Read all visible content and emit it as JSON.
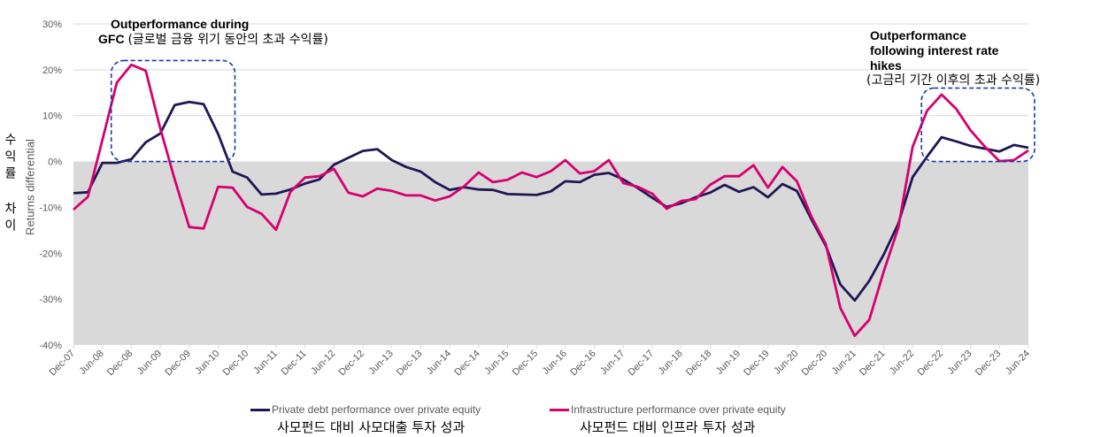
{
  "chart_data": {
    "type": "line",
    "title": "",
    "ylabel": "Returns differential",
    "ylabel_kr": "수익률 차이",
    "ylim": [
      -40,
      30
    ],
    "yticks": [
      "30%",
      "20%",
      "10%",
      "0%",
      "-10%",
      "-20%",
      "-30%",
      "-40%"
    ],
    "ytick_values": [
      30,
      20,
      10,
      0,
      -10,
      -20,
      -30,
      -40
    ],
    "grid": true,
    "legend_position": "bottom",
    "xtick_labels": [
      "Dec-07",
      "Jun-08",
      "Dec-08",
      "Jun-09",
      "Dec-09",
      "Jun-10",
      "Dec-10",
      "Jun-11",
      "Dec-11",
      "Jun-12",
      "Dec-12",
      "Jun-13",
      "Dec-13",
      "Jun-14",
      "Dec-14",
      "Jun-15",
      "Dec-15",
      "Jun-16",
      "Dec-16",
      "Jun-17",
      "Dec-17",
      "Jun-18",
      "Dec-18",
      "Jun-19",
      "Dec-19",
      "Jun-20",
      "Dec-20",
      "Jun-21",
      "Dec-21",
      "Jun-22",
      "Dec-22",
      "Jun-23",
      "Dec-23",
      "Jun-24"
    ],
    "series": [
      {
        "name": "Private debt performance over private equity",
        "name_kr": "사모펀드 대비 사모대출 투자 성과",
        "color": "#1f1754",
        "values": [
          -6.9,
          -6.7,
          -0.3,
          -0.3,
          0.5,
          4.2,
          6.1,
          12.3,
          13.0,
          12.5,
          6.0,
          -2.2,
          -3.5,
          -7.2,
          -7.0,
          -6.1,
          -4.8,
          -3.9,
          -0.7,
          0.8,
          2.3,
          2.7,
          0.3,
          -1.2,
          -2.2,
          -4.5,
          -6.2,
          -5.6,
          -6.1,
          -6.2,
          -7.1,
          -7.2,
          -7.3,
          -6.5,
          -4.3,
          -4.5,
          -2.9,
          -2.5,
          -3.9,
          -5.8,
          -7.9,
          -9.9,
          -9.1,
          -7.8,
          -6.8,
          -5.1,
          -6.6,
          -5.6,
          -7.8,
          -4.9,
          -6.4,
          -12.6,
          -18.4,
          -26.8,
          -30.3,
          -26.0,
          -20.3,
          -13.6,
          -3.4,
          1.1,
          5.3,
          4.4,
          3.4,
          2.8,
          2.2,
          3.6,
          3.0
        ]
      },
      {
        "name": "Infrastructure performance over private equity",
        "name_kr": "사모펀드 대비 인프라 투자 성과",
        "color": "#d6006f",
        "values": [
          -10.5,
          -7.7,
          4.7,
          17.2,
          21.1,
          19.8,
          7.2,
          -3.9,
          -14.3,
          -14.6,
          -5.5,
          -5.7,
          -9.9,
          -11.4,
          -14.9,
          -6.6,
          -3.5,
          -3.2,
          -1.6,
          -6.8,
          -7.6,
          -5.9,
          -6.4,
          -7.4,
          -7.4,
          -8.5,
          -7.6,
          -5.4,
          -2.4,
          -4.5,
          -4.0,
          -2.4,
          -3.4,
          -2.1,
          0.3,
          -2.6,
          -2.1,
          0.3,
          -4.7,
          -5.5,
          -7.0,
          -10.3,
          -8.6,
          -8.2,
          -5.1,
          -3.2,
          -3.2,
          -0.8,
          -5.7,
          -1.2,
          -4.3,
          -12.0,
          -18.0,
          -31.9,
          -38.0,
          -34.5,
          -24.0,
          -14.5,
          3.2,
          11.1,
          14.6,
          11.5,
          6.8,
          3.2,
          0.1,
          0.3,
          2.4
        ]
      }
    ],
    "shaded_region": {
      "from": -40,
      "to": 0,
      "color": "#d9d9d9"
    },
    "annotations": [
      {
        "title_line1": "Outperformance during",
        "title_line2": "GFC",
        "kr": "(글로벌 금융 위기 동안의 초과 수익률)",
        "box_x_range": [
          "Jun-08",
          "Jun-10"
        ],
        "box_y_range": [
          0,
          22
        ]
      },
      {
        "title_line1": "Outperformance",
        "title_line2": "following interest rate",
        "title_line3": "hikes",
        "kr": "(고금리 기간 이후의 초과 수익률)",
        "box_x_range": [
          "Jun-22",
          "Jun-24"
        ],
        "box_y_range": [
          0,
          16
        ]
      }
    ]
  }
}
